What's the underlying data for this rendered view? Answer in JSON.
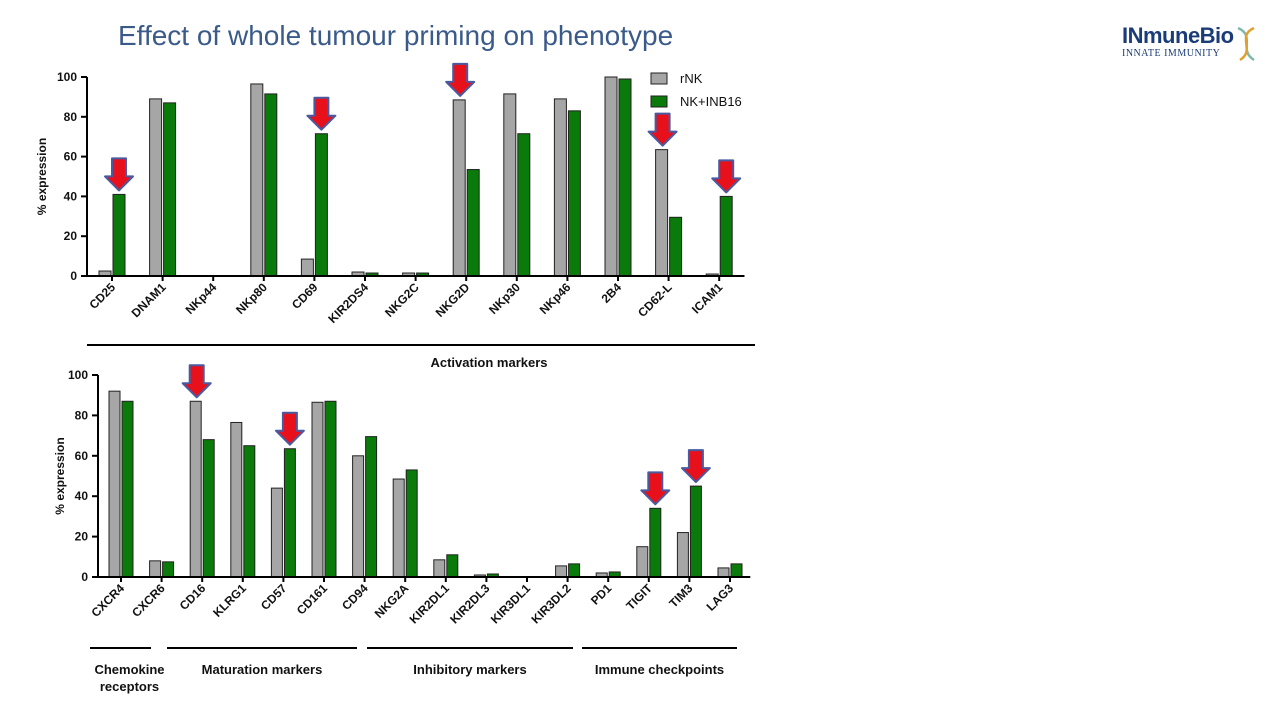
{
  "slide": {
    "title": "Effect of whole tumour priming on phenotype",
    "logo_name": "INmuneBio",
    "logo_tagline": "INNATE IMMUNITY"
  },
  "colors": {
    "rNK": "#a6a6a6",
    "NK+INB16": "#0a7a0a",
    "arrow_fill": "#e8101a",
    "arrow_edge": "#4a5aa0",
    "title": "#3a5a8a",
    "logo": "#1a3c78"
  },
  "chart_data": [
    {
      "type": "bar",
      "ylabel": "% expression",
      "ylim": [
        0,
        100
      ],
      "yticks": [
        0,
        20,
        40,
        60,
        80,
        100
      ],
      "legend_position": "top-right",
      "categories": [
        "CD25",
        "DNAM1",
        "NKp44",
        "NKp80",
        "CD69",
        "KIR2DS4",
        "NKG2C",
        "NKG2D",
        "NKp30",
        "NKp46",
        "2B4",
        "CD62-L",
        "ICAM1"
      ],
      "series": [
        {
          "name": "rNK",
          "values": [
            2.5,
            89,
            0,
            96.5,
            8.5,
            2,
            1.5,
            88.5,
            91.5,
            89,
            100,
            63.5,
            1
          ]
        },
        {
          "name": "NK+INB16",
          "values": [
            41,
            87,
            0,
            91.5,
            71.5,
            1.5,
            1.5,
            53.5,
            71.5,
            83,
            99,
            29.5,
            40
          ]
        }
      ],
      "arrows_on": [
        "CD25",
        "CD69",
        "NKG2D",
        "CD62-L",
        "ICAM1"
      ],
      "groups": [
        {
          "label": "Activation markers",
          "from": 0,
          "to": 12
        }
      ]
    },
    {
      "type": "bar",
      "ylabel": "% expression",
      "ylim": [
        0,
        100
      ],
      "yticks": [
        0,
        20,
        40,
        60,
        80,
        100
      ],
      "categories": [
        "CXCR4",
        "CXCR6",
        "CD16",
        "KLRG1",
        "CD57",
        "CD161",
        "CD94",
        "NKG2A",
        "KIR2DL1",
        "KIR2DL3",
        "KIR3DL1",
        "KIR3DL2",
        "PD1",
        "TIGIT",
        "TIM3",
        "LAG3"
      ],
      "series": [
        {
          "name": "rNK",
          "values": [
            92,
            8,
            87,
            76.5,
            44,
            86.5,
            60,
            48.5,
            8.5,
            1,
            0,
            5.5,
            2,
            15,
            22,
            4.5
          ]
        },
        {
          "name": "NK+INB16",
          "values": [
            87,
            7.5,
            68,
            65,
            63.5,
            87,
            69.5,
            53,
            11,
            1.5,
            0,
            6.5,
            2.5,
            34,
            45,
            6.5
          ]
        }
      ],
      "arrows_on": [
        "CD16",
        "CD57",
        "TIGIT",
        "TIM3"
      ],
      "groups": [
        {
          "label": "Chemokine receptors",
          "from": 0,
          "to": 1
        },
        {
          "label": "Maturation markers",
          "from": 2,
          "to": 6
        },
        {
          "label": "Inhibitory markers",
          "from": 7,
          "to": 11
        },
        {
          "label": "Immune checkpoints",
          "from": 12,
          "to": 15
        }
      ]
    }
  ]
}
